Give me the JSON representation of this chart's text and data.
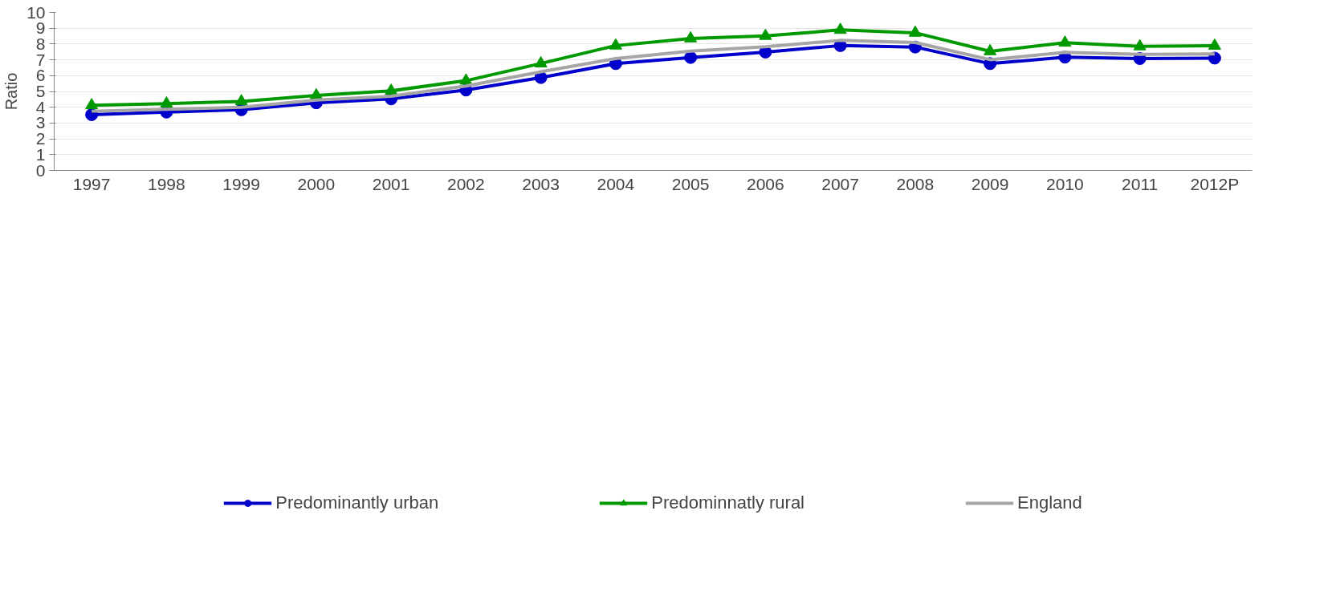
{
  "chart_data": {
    "type": "line",
    "ylabel": "Ratio",
    "categories": [
      "1997",
      "1998",
      "1999",
      "2000",
      "2001",
      "2002",
      "2003",
      "2004",
      "2005",
      "2006",
      "2007",
      "2008",
      "2009",
      "2010",
      "2011",
      "2012P"
    ],
    "series": [
      {
        "name": "Predominantly urban",
        "color": "#0000cc",
        "marker": "circle",
        "values": [
          3.53,
          3.69,
          3.84,
          4.28,
          4.53,
          5.09,
          5.88,
          6.76,
          7.15,
          7.49,
          7.9,
          7.81,
          6.76,
          7.17,
          7.08,
          7.11
        ]
      },
      {
        "name": "Predominnatly rural",
        "color": "#009900",
        "marker": "triangle",
        "values": [
          4.12,
          4.23,
          4.37,
          4.75,
          5.04,
          5.68,
          6.77,
          7.9,
          8.35,
          8.51,
          8.89,
          8.71,
          7.54,
          8.08,
          7.85,
          7.89
        ]
      },
      {
        "name": "England",
        "color": "#a6a6a6",
        "marker": "none",
        "values": [
          3.75,
          3.87,
          4.0,
          4.46,
          4.7,
          5.34,
          6.24,
          7.08,
          7.55,
          7.83,
          8.23,
          8.1,
          7.01,
          7.47,
          7.35,
          7.37
        ]
      }
    ],
    "ylim": [
      0,
      10
    ],
    "yticks": [
      0,
      1,
      2,
      3,
      4,
      5,
      6,
      7,
      8,
      9,
      10
    ],
    "grid": "y",
    "legend": "bottom"
  }
}
